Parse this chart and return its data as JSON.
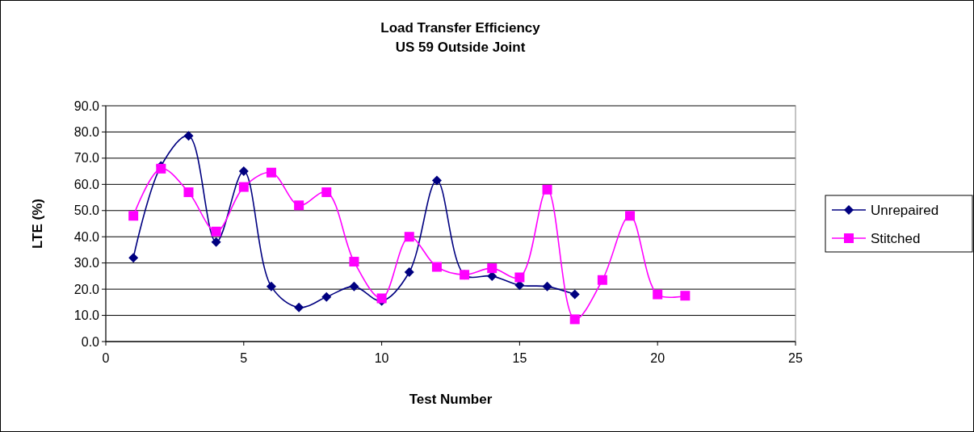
{
  "chart_data": {
    "type": "line",
    "title": "Load Transfer Efficiency\nUS 59 Outside Joint",
    "xlabel": "Test Number",
    "ylabel": "LTE (%)",
    "xlim": [
      0,
      25
    ],
    "xticks": [
      0,
      5,
      10,
      15,
      20,
      25
    ],
    "ylim": [
      0,
      90
    ],
    "yticks": [
      {
        "value": 0,
        "label": "0.0"
      },
      {
        "value": 10,
        "label": "10.0"
      },
      {
        "value": 20,
        "label": "20.0"
      },
      {
        "value": 30,
        "label": "30.0"
      },
      {
        "value": 40,
        "label": "40.0"
      },
      {
        "value": 50,
        "label": "50.0"
      },
      {
        "value": 60,
        "label": "60.0"
      },
      {
        "value": 70,
        "label": "70.0"
      },
      {
        "value": 80,
        "label": "80.0"
      },
      {
        "value": 90,
        "label": "90.0"
      }
    ],
    "grid": "y",
    "legend": "right",
    "series": [
      {
        "name": "Unrepaired",
        "color": "#000080",
        "marker": "diamond",
        "x": [
          1,
          2,
          3,
          4,
          5,
          6,
          7,
          8,
          9,
          10,
          11,
          12,
          13,
          14,
          15,
          16,
          17
        ],
        "values": [
          32,
          67,
          78.5,
          38,
          65,
          21,
          13,
          17,
          21,
          15.5,
          26.5,
          61.5,
          25.5,
          25,
          21.5,
          21,
          18
        ]
      },
      {
        "name": "Stitched",
        "color": "#ff00ff",
        "marker": "square",
        "x": [
          1,
          2,
          3,
          4,
          5,
          6,
          7,
          8,
          9,
          10,
          11,
          12,
          13,
          14,
          15,
          16,
          17,
          18,
          19,
          20,
          21
        ],
        "values": [
          48,
          66,
          57,
          42,
          59,
          64.5,
          52,
          57,
          30.5,
          16.5,
          40,
          28.5,
          25.5,
          28,
          24.5,
          58,
          8.5,
          23.5,
          48,
          18,
          17.5
        ]
      }
    ]
  }
}
